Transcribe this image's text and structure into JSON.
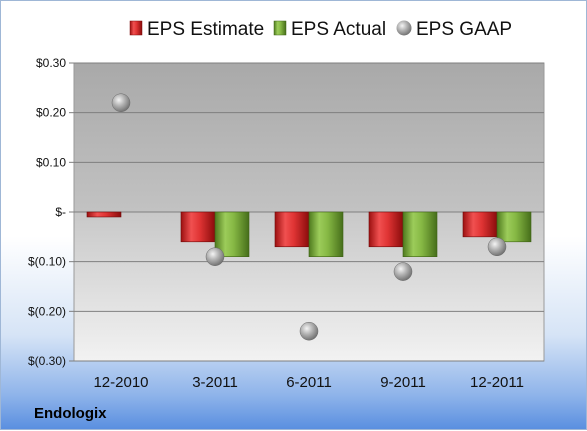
{
  "company": "Endologix",
  "chart_data": {
    "type": "bar",
    "categories": [
      "12-2010",
      "3-2011",
      "6-2011",
      "9-2011",
      "12-2011"
    ],
    "series": [
      {
        "name": "EPS Estimate",
        "kind": "bar",
        "color": "#d42a2a",
        "values": [
          -0.01,
          -0.06,
          -0.07,
          -0.07,
          -0.05
        ]
      },
      {
        "name": "EPS Actual",
        "kind": "bar",
        "color": "#76a535",
        "values": [
          null,
          -0.09,
          -0.09,
          -0.09,
          -0.06
        ]
      },
      {
        "name": "EPS GAAP",
        "kind": "scatter",
        "color": "#a8a8a8",
        "values": [
          0.22,
          -0.09,
          -0.24,
          -0.12,
          -0.07
        ]
      }
    ],
    "yticks": [
      {
        "value": 0.3,
        "label": "$0.30"
      },
      {
        "value": 0.2,
        "label": "$0.20"
      },
      {
        "value": 0.1,
        "label": "$0.10"
      },
      {
        "value": 0,
        "label": "$-"
      },
      {
        "value": -0.1,
        "label": "$(0.10)"
      },
      {
        "value": -0.2,
        "label": "$(0.20)"
      },
      {
        "value": -0.3,
        "label": "$(0.30)"
      }
    ],
    "ylim": [
      -0.3,
      0.3
    ],
    "grid": true,
    "legend": "top"
  }
}
